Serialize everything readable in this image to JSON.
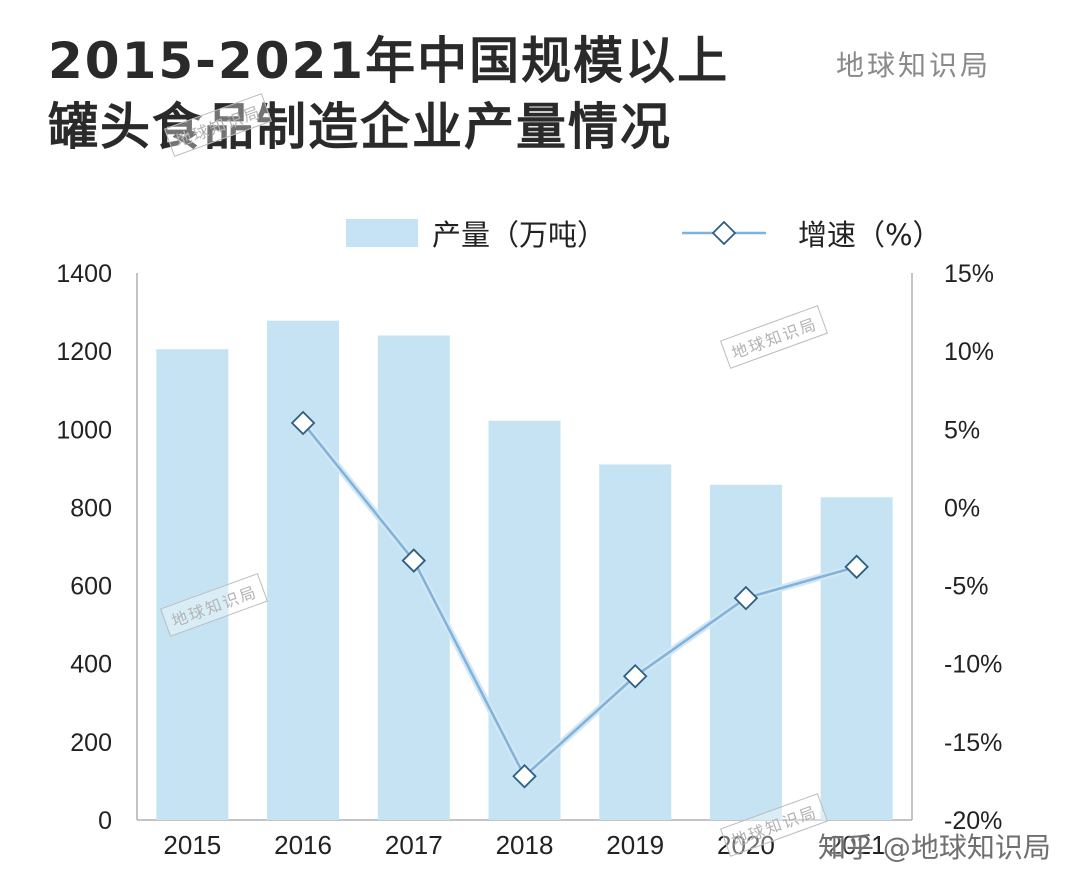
{
  "title": {
    "line1": "2015-2021年中国规模以上",
    "line2": "罐头食品制造企业产量情况"
  },
  "brand": "地球知识局",
  "watermark": "地球知识局",
  "footer_credit": "知乎 @地球知识局",
  "colors": {
    "bar": "#c5e3f3",
    "line": "#7fb3dc",
    "marker_stroke": "#2d5f82",
    "axis": "#b0b0b0",
    "text": "#222222"
  },
  "chart_data": {
    "type": "bar",
    "categories": [
      "2015",
      "2016",
      "2017",
      "2018",
      "2019",
      "2020",
      "2021"
    ],
    "series": [
      {
        "name": "产量（万吨）",
        "type": "bar",
        "axis": "left",
        "values": [
          1205,
          1278,
          1240,
          1022,
          910,
          858,
          826
        ]
      },
      {
        "name": "增速（%）",
        "type": "line",
        "axis": "right",
        "values": [
          null,
          5.4,
          -3.4,
          -17.2,
          -10.8,
          -5.8,
          -3.8
        ]
      }
    ],
    "y_left": {
      "min": 0,
      "max": 1400,
      "ticks": [
        "0",
        "200",
        "400",
        "600",
        "800",
        "1000",
        "1200",
        "1400"
      ]
    },
    "y_right": {
      "min": -20,
      "max": 15,
      "ticks": [
        "-20%",
        "-15%",
        "-10%",
        "-5%",
        "0%",
        "5%",
        "10%",
        "15%"
      ]
    },
    "legend_position": "top-right",
    "grid": false
  }
}
